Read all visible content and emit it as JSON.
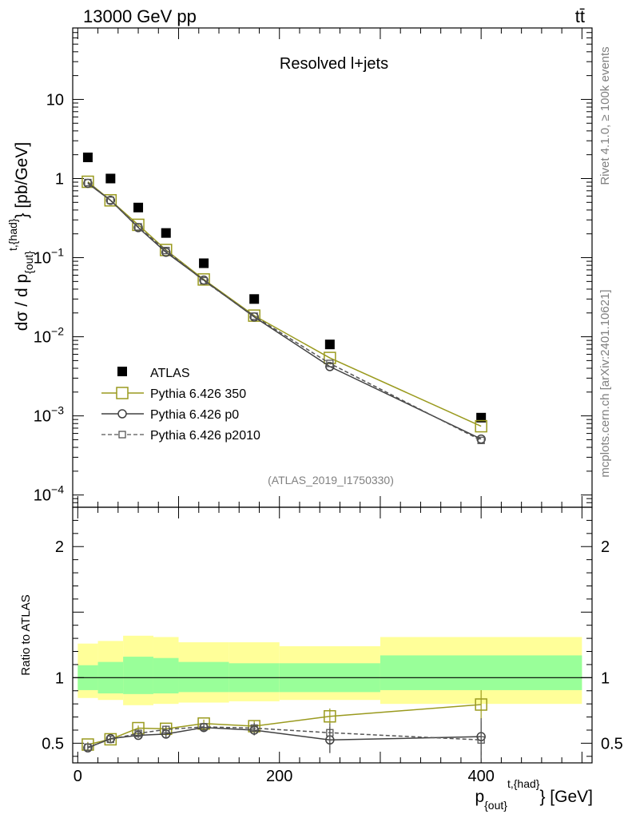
{
  "header": {
    "energy_label": "13000 GeV pp",
    "process_label": "tt̄"
  },
  "plot_title": "Resolved l+jets",
  "analysis_id": "(ATLAS_2019_I1750330)",
  "side_labels": {
    "rivet": "Rivet 4.1.0, ≥ 100k events",
    "mcplots": "mcplots.cern.ch [arXiv:2401.10621]"
  },
  "axis_labels": {
    "y_main_prefix": "dσ / d p",
    "y_main_sub": "{out}",
    "y_main_sup": "t,{had}",
    "y_main_suffix": "} [pb/GeV]",
    "y_ratio": "Ratio to ATLAS",
    "x_prefix": "p",
    "x_sub": "{out}",
    "x_sup": "t,{had}",
    "x_suffix": "} [GeV]"
  },
  "colors": {
    "data": "#000000",
    "p350": "#9a9a1e",
    "p0": "#404040",
    "p2010": "#555555",
    "band_inner": "#99ff99",
    "band_outer": "#ffff99"
  },
  "chart_data": [
    {
      "type": "scatter",
      "panel": "main",
      "title": "Resolved l+jets",
      "xlabel": "p_{out}^{t,{had}} [GeV]",
      "ylabel": "dσ / d p_{out}^{t,{had}} [pb/GeV]",
      "yscale": "log",
      "xlim": [
        -5,
        510
      ],
      "ylim": [
        7e-05,
        80
      ],
      "yticks": [
        {
          "value": 10,
          "base": "10",
          "exp": ""
        },
        {
          "value": 1,
          "base": "1",
          "exp": ""
        },
        {
          "value": 0.1,
          "base": "10",
          "exp": "−1"
        },
        {
          "value": 0.01,
          "base": "10",
          "exp": "−2"
        },
        {
          "value": 0.001,
          "base": "10",
          "exp": "−3"
        },
        {
          "value": 0.0001,
          "base": "10",
          "exp": "−4"
        }
      ],
      "x": [
        10,
        32.5,
        60,
        87.5,
        125,
        175,
        250,
        400
      ],
      "series": [
        {
          "name": "ATLAS",
          "key": "data",
          "values": [
            1.85,
            1.0,
            0.43,
            0.205,
            0.085,
            0.03,
            0.008,
            0.00095
          ]
        },
        {
          "name": "Pythia 6.426 350",
          "key": "p350",
          "values": [
            0.91,
            0.53,
            0.26,
            0.125,
            0.053,
            0.0185,
            0.0054,
            0.00074
          ]
        },
        {
          "name": "Pythia 6.426 p0",
          "key": "p0",
          "values": [
            0.87,
            0.53,
            0.24,
            0.117,
            0.052,
            0.0178,
            0.0042,
            0.00051
          ]
        },
        {
          "name": "Pythia 6.426 p2010",
          "key": "p2010",
          "values": [
            0.89,
            0.53,
            0.245,
            0.123,
            0.051,
            0.0182,
            0.0046,
            0.00049
          ]
        }
      ]
    },
    {
      "type": "line",
      "panel": "ratio",
      "ylabel": "Ratio to ATLAS",
      "xlabel": "p_{out}^{t,{had}} [GeV]",
      "xlim": [
        -5,
        510
      ],
      "ylim": [
        0.35,
        2.3
      ],
      "yticks": [
        0.5,
        1,
        2
      ],
      "xticks": [
        0,
        200,
        400
      ],
      "bins": [
        [
          0,
          20
        ],
        [
          20,
          45
        ],
        [
          45,
          75
        ],
        [
          75,
          100
        ],
        [
          100,
          150
        ],
        [
          150,
          200
        ],
        [
          200,
          300
        ],
        [
          300,
          500
        ]
      ],
      "band_inner": [
        [
          0.905,
          1.095
        ],
        [
          0.88,
          1.12
        ],
        [
          0.875,
          1.16
        ],
        [
          0.88,
          1.15
        ],
        [
          0.89,
          1.12
        ],
        [
          0.89,
          1.11
        ],
        [
          0.89,
          1.11
        ],
        [
          0.905,
          1.17
        ]
      ],
      "band_outer": [
        [
          0.845,
          1.26
        ],
        [
          0.83,
          1.28
        ],
        [
          0.79,
          1.32
        ],
        [
          0.8,
          1.31
        ],
        [
          0.81,
          1.27
        ],
        [
          0.82,
          1.27
        ],
        [
          0.83,
          1.24
        ],
        [
          0.8,
          1.31
        ]
      ],
      "x": [
        10,
        32.5,
        60,
        87.5,
        125,
        175,
        250,
        400
      ],
      "series": [
        {
          "name": "Pythia 6.426 350",
          "key": "p350",
          "values": [
            0.49,
            0.53,
            0.615,
            0.61,
            0.65,
            0.63,
            0.705,
            0.795
          ],
          "errors": [
            0.02,
            0.02,
            0.02,
            0.025,
            0.03,
            0.04,
            0.06,
            0.11
          ]
        },
        {
          "name": "Pythia 6.426 p0",
          "key": "p0",
          "values": [
            0.465,
            0.535,
            0.56,
            0.57,
            0.62,
            0.6,
            0.525,
            0.55
          ],
          "errors": [
            0.02,
            0.02,
            0.02,
            0.025,
            0.03,
            0.04,
            0.1,
            0.14
          ]
        },
        {
          "name": "Pythia 6.426 p2010",
          "key": "p2010",
          "values": [
            0.47,
            0.53,
            0.575,
            0.605,
            0.625,
            0.615,
            0.58,
            0.525
          ],
          "errors": [
            0.02,
            0.02,
            0.02,
            0.025,
            0.03,
            0.04,
            0.07,
            0.14
          ]
        }
      ]
    }
  ]
}
